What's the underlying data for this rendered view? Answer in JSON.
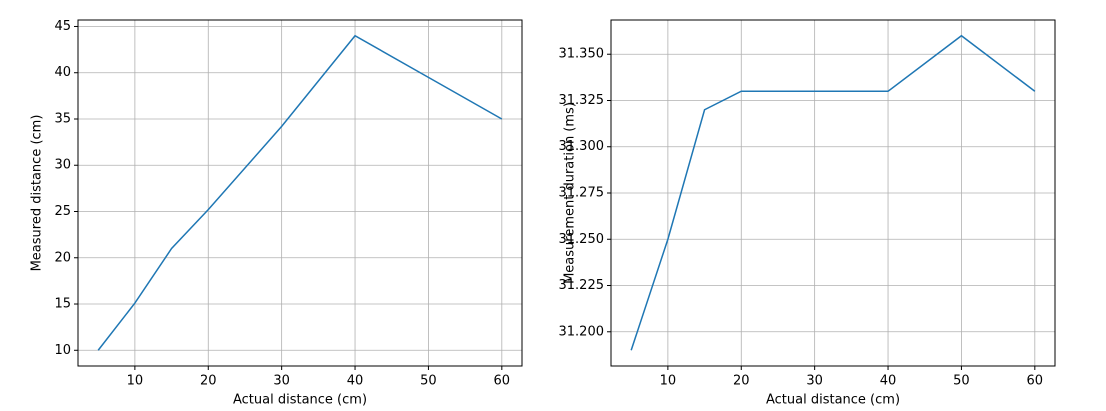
{
  "chart_data": [
    {
      "type": "line",
      "xlabel": "Actual distance (cm)",
      "ylabel": "Measured distance (cm)",
      "x": [
        5,
        10,
        15,
        20,
        30,
        40,
        50,
        60
      ],
      "series": [
        {
          "color": "#1f77b4",
          "values": [
            10,
            15.1,
            21,
            25.2,
            34.2,
            44,
            39.5,
            35
          ]
        }
      ],
      "xlim": [
        2.25,
        62.75
      ],
      "xticks": [
        10,
        20,
        30,
        40,
        50,
        60
      ],
      "ylim": [
        8.3,
        45.7
      ],
      "yticks": [
        10,
        15,
        20,
        25,
        30,
        35,
        40,
        45
      ],
      "grid": true
    },
    {
      "type": "line",
      "xlabel": "Actual distance (cm)",
      "ylabel": "Measurement duration (ms)",
      "x": [
        5,
        10,
        15,
        20,
        30,
        40,
        50,
        60
      ],
      "series": [
        {
          "color": "#1f77b4",
          "values": [
            31.19,
            31.25,
            31.32,
            31.33,
            31.33,
            31.33,
            31.36,
            31.33
          ]
        }
      ],
      "xlim": [
        2.25,
        62.75
      ],
      "xticks": [
        10,
        20,
        30,
        40,
        50,
        60
      ],
      "ylim": [
        31.1815,
        31.3685
      ],
      "yticks": [
        {
          "value": 31.2,
          "label": "31.200"
        },
        {
          "value": 31.225,
          "label": "31.225"
        },
        {
          "value": 31.25,
          "label": "31.250"
        },
        {
          "value": 31.275,
          "label": "31.275"
        },
        {
          "value": 31.3,
          "label": "31.300"
        },
        {
          "value": 31.325,
          "label": "31.325"
        },
        {
          "value": 31.35,
          "label": "31.350"
        }
      ],
      "grid": true
    }
  ]
}
